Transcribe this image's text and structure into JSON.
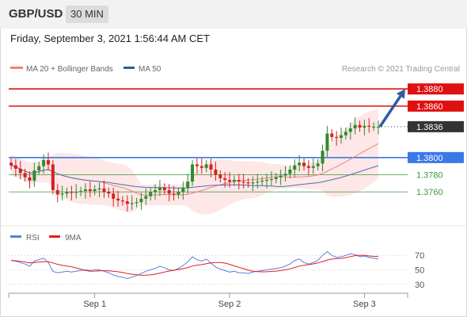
{
  "header": {
    "symbol": "GBP/USD",
    "timeframe": "30 MIN"
  },
  "timestamp": "Friday, September 3, 2021 1:56:44 AM CET",
  "legend_price": [
    {
      "label": "MA 20 + Bollinger Bands",
      "color": "#f08080"
    },
    {
      "label": "MA 50",
      "color": "#2e5c9e"
    }
  ],
  "legend_rsi": [
    {
      "label": "RSI",
      "color": "#5b7fd6"
    },
    {
      "label": "9MA",
      "color": "#e02020"
    }
  ],
  "copyright": "Research © 2021 Trading Central",
  "colors": {
    "bull": "#2e8b2e",
    "bear": "#d62020",
    "resistance": "#e01010",
    "pivot": "#3a78e8",
    "support": "#3c9a3c",
    "band": "#fde3e3",
    "arrow": "#2e5c9e",
    "last": "#333333"
  },
  "chart_data": [
    {
      "type": "candlestick",
      "ylim": [
        1.3725,
        1.3895
      ],
      "x_ticks": [
        "Sep 1",
        "Sep 2",
        "Sep 3"
      ],
      "x_tick_index": [
        18,
        47,
        76
      ],
      "n_bars": 80,
      "last_price": "1.3836",
      "closes": [
        1.3791,
        1.3787,
        1.3782,
        1.3777,
        1.3773,
        1.3785,
        1.379,
        1.3797,
        1.3792,
        1.3762,
        1.3757,
        1.3758,
        1.376,
        1.3759,
        1.376,
        1.3761,
        1.3763,
        1.3761,
        1.3763,
        1.3764,
        1.376,
        1.3758,
        1.3752,
        1.375,
        1.3749,
        1.3746,
        1.3747,
        1.3748,
        1.3752,
        1.3755,
        1.376,
        1.3762,
        1.3765,
        1.3762,
        1.3758,
        1.3757,
        1.376,
        1.3765,
        1.3772,
        1.3792,
        1.379,
        1.3788,
        1.3792,
        1.3786,
        1.378,
        1.3776,
        1.3774,
        1.3772,
        1.3774,
        1.3772,
        1.3771,
        1.377,
        1.3771,
        1.3772,
        1.3773,
        1.3774,
        1.3775,
        1.3777,
        1.3779,
        1.3781,
        1.3786,
        1.3791,
        1.3794,
        1.379,
        1.3788,
        1.379,
        1.3793,
        1.3808,
        1.3828,
        1.3824,
        1.3823,
        1.3826,
        1.383,
        1.3834,
        1.3838,
        1.3835,
        1.3837,
        1.3836,
        1.3836,
        1.3836
      ],
      "levels": [
        {
          "value": 1.388,
          "label": "1.3880",
          "kind": "resistance"
        },
        {
          "value": 1.386,
          "label": "1.3860",
          "kind": "resistance"
        },
        {
          "value": 1.38,
          "label": "1.3800",
          "kind": "pivot"
        },
        {
          "value": 1.378,
          "label": "1.3780",
          "kind": "support"
        },
        {
          "value": 1.376,
          "label": "1.3760",
          "kind": "support"
        }
      ]
    },
    {
      "type": "line",
      "name": "RSI",
      "ylim": [
        20,
        80
      ],
      "y_ticks": [
        70,
        50,
        30
      ],
      "rsi": [
        63,
        62,
        60,
        58,
        55,
        62,
        64,
        66,
        60,
        48,
        46,
        47,
        48,
        47,
        48,
        49,
        50,
        49,
        50,
        50,
        48,
        46,
        43,
        41,
        40,
        38,
        40,
        42,
        45,
        48,
        50,
        52,
        55,
        53,
        50,
        49,
        52,
        56,
        61,
        68,
        64,
        62,
        65,
        59,
        54,
        51,
        49,
        47,
        48,
        46,
        46,
        45,
        47,
        48,
        49,
        50,
        51,
        52,
        53,
        55,
        58,
        63,
        65,
        60,
        58,
        60,
        63,
        70,
        75,
        70,
        67,
        68,
        70,
        72,
        71,
        68,
        69,
        67,
        66,
        65
      ]
    }
  ]
}
